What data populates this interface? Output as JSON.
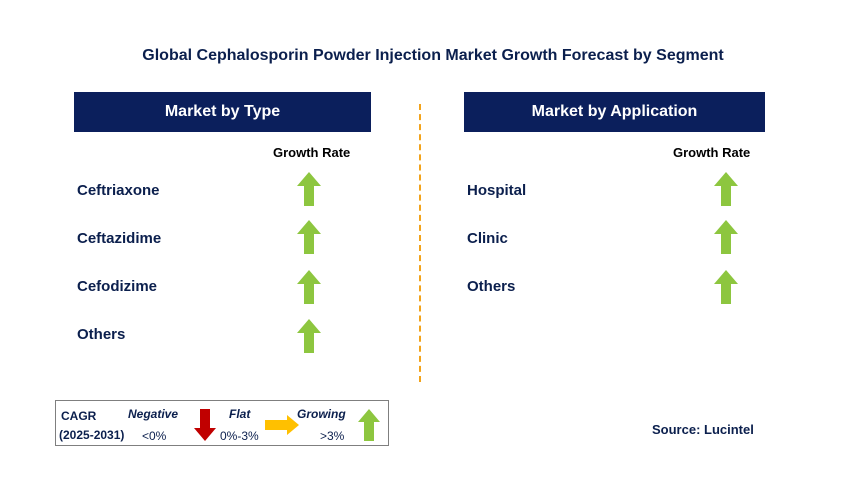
{
  "title": "Global Cephalosporin Powder Injection Market Growth Forecast by Segment",
  "colors": {
    "header_bg": "#0b1f5c",
    "growing": "#8dc63f",
    "flat": "#ffc000",
    "negative": "#c00000",
    "divider": "#f2a31b"
  },
  "type_panel": {
    "header": "Market by Type",
    "column_label": "Growth Rate",
    "rows": [
      {
        "label": "Ceftriaxone",
        "trend": "growing"
      },
      {
        "label": "Ceftazidime",
        "trend": "growing"
      },
      {
        "label": "Cefodizime",
        "trend": "growing"
      },
      {
        "label": "Others",
        "trend": "growing"
      }
    ]
  },
  "application_panel": {
    "header": "Market by Application",
    "column_label": "Growth Rate",
    "rows": [
      {
        "label": "Hospital",
        "trend": "growing"
      },
      {
        "label": "Clinic",
        "trend": "growing"
      },
      {
        "label": "Others",
        "trend": "growing"
      }
    ]
  },
  "legend": {
    "cagr_label": "CAGR",
    "period": "(2025-2031)",
    "negative_label": "Negative",
    "negative_range": "<0%",
    "flat_label": "Flat",
    "flat_range": "0%-3%",
    "growing_label": "Growing",
    "growing_range": ">3%"
  },
  "source": "Source: Lucintel"
}
